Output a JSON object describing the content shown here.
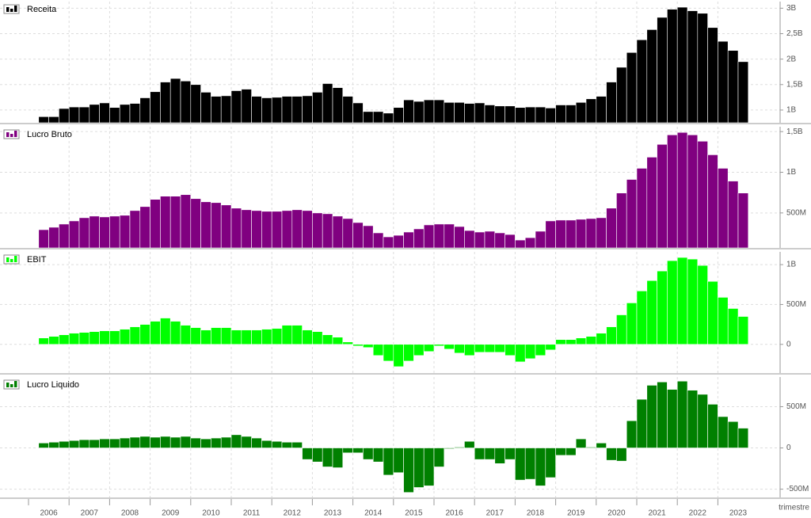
{
  "x_axis": {
    "label": "trimestre",
    "years": [
      2006,
      2007,
      2008,
      2009,
      2010,
      2011,
      2012,
      2013,
      2014,
      2015,
      2016,
      2017,
      2018,
      2019,
      2020,
      2021,
      2022,
      2023
    ]
  },
  "chart_data": [
    {
      "type": "bar",
      "title": "Receita",
      "color": "#000000",
      "grid": true,
      "ylim": [
        0.75,
        3.13
      ],
      "yticks": [
        {
          "value": 1,
          "label": "1B"
        },
        {
          "value": 1.5,
          "label": "1,5B"
        },
        {
          "value": 2,
          "label": "2B"
        },
        {
          "value": 2.5,
          "label": "2,5B"
        },
        {
          "value": 3,
          "label": "3B"
        }
      ],
      "values": [
        0.87,
        0.87,
        1.03,
        1.06,
        1.06,
        1.11,
        1.14,
        1.05,
        1.11,
        1.13,
        1.24,
        1.36,
        1.55,
        1.62,
        1.57,
        1.5,
        1.35,
        1.27,
        1.28,
        1.38,
        1.41,
        1.27,
        1.24,
        1.25,
        1.27,
        1.27,
        1.28,
        1.35,
        1.52,
        1.44,
        1.27,
        1.14,
        0.97,
        0.97,
        0.94,
        1.05,
        1.2,
        1.17,
        1.2,
        1.2,
        1.15,
        1.15,
        1.13,
        1.14,
        1.1,
        1.08,
        1.08,
        1.05,
        1.06,
        1.06,
        1.04,
        1.1,
        1.1,
        1.15,
        1.22,
        1.27,
        1.55,
        1.84,
        2.13,
        2.38,
        2.58,
        2.82,
        2.98,
        3.02,
        2.95,
        2.9,
        2.62,
        2.35,
        2.17,
        1.95
      ]
    },
    {
      "type": "bar",
      "title": "Lucro Bruto",
      "color": "#800080",
      "grid": true,
      "ylim": [
        70,
        1560
      ],
      "yticks": [
        {
          "value": 500,
          "label": "500M"
        },
        {
          "value": 1000,
          "label": "1B"
        },
        {
          "value": 1500,
          "label": "1,5B"
        }
      ],
      "values": [
        294,
        324,
        363,
        402,
        441,
        461,
        451,
        461,
        471,
        529,
        578,
        667,
        706,
        706,
        725,
        676,
        637,
        627,
        598,
        559,
        539,
        529,
        520,
        520,
        529,
        539,
        529,
        500,
        490,
        461,
        431,
        382,
        343,
        255,
        206,
        225,
        265,
        304,
        353,
        363,
        363,
        333,
        284,
        265,
        275,
        255,
        235,
        167,
        196,
        275,
        402,
        412,
        412,
        422,
        431,
        441,
        559,
        745,
        912,
        1049,
        1186,
        1343,
        1460,
        1490,
        1460,
        1382,
        1215,
        1049,
        892,
        745
      ]
    },
    {
      "type": "bar",
      "title": "EBIT",
      "color": "#00ff00",
      "grid": true,
      "ylim": [
        -360,
        1160
      ],
      "yticks": [
        0,
        {
          "value": 500,
          "label": "500M"
        },
        {
          "value": 1000,
          "label": "1B"
        }
      ],
      "values": [
        80,
        100,
        120,
        140,
        150,
        160,
        170,
        170,
        190,
        220,
        250,
        290,
        330,
        290,
        240,
        210,
        180,
        210,
        210,
        180,
        180,
        180,
        190,
        200,
        240,
        240,
        180,
        160,
        120,
        90,
        30,
        -20,
        -40,
        -140,
        -210,
        -280,
        -210,
        -140,
        -90,
        -20,
        -60,
        -110,
        -140,
        -100,
        -100,
        -100,
        -140,
        -220,
        -180,
        -140,
        -70,
        60,
        60,
        80,
        100,
        140,
        220,
        370,
        520,
        670,
        800,
        920,
        1050,
        1090,
        1070,
        990,
        790,
        590,
        450,
        350
      ]
    },
    {
      "type": "bar",
      "title": "Lucro Liquido",
      "color": "#008000",
      "grid": true,
      "ylim": [
        -600,
        860
      ],
      "yticks": [
        {
          "value": -500,
          "label": "-500M"
        },
        0,
        {
          "value": 500,
          "label": "500M"
        }
      ],
      "values": [
        60,
        70,
        80,
        90,
        100,
        100,
        110,
        110,
        120,
        130,
        140,
        130,
        140,
        130,
        140,
        120,
        110,
        120,
        130,
        160,
        140,
        120,
        90,
        80,
        70,
        70,
        -140,
        -170,
        -230,
        -240,
        -60,
        -60,
        -140,
        -170,
        -330,
        -300,
        -540,
        -480,
        -460,
        -230,
        -10,
        10,
        80,
        -140,
        -140,
        -190,
        -140,
        -390,
        -380,
        -460,
        -360,
        -90,
        -90,
        110,
        10,
        60,
        -150,
        -160,
        330,
        590,
        760,
        800,
        710,
        810,
        700,
        650,
        530,
        380,
        320,
        240
      ]
    }
  ]
}
